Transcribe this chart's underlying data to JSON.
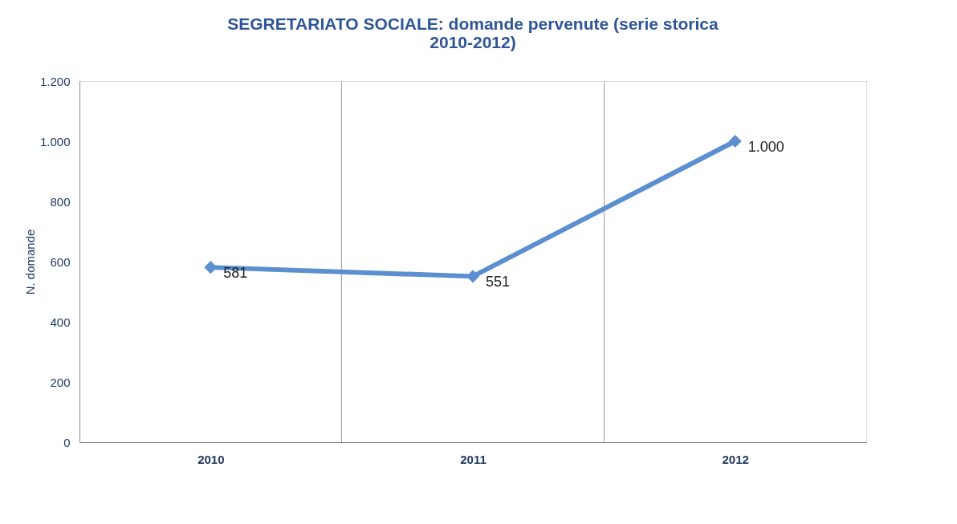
{
  "chart_data": {
    "type": "line",
    "title": [
      "SEGRETARIATO SOCIALE: domande pervenute (serie storica",
      "2010-2012)"
    ],
    "ylabel": "N. domande",
    "categories": [
      "2010",
      "2011",
      "2012"
    ],
    "series": [
      {
        "color": "#5b8fd0",
        "values": [
          581,
          551,
          1000
        ]
      }
    ],
    "value_labels": [
      "581",
      "551",
      "1.000"
    ],
    "ylim": [
      0,
      1200
    ],
    "yticks": [
      0,
      200,
      400,
      600,
      800,
      {
        "value": 1000,
        "label": "1.000"
      },
      {
        "value": 1200,
        "label": "1.200"
      }
    ],
    "grid": "x",
    "marker": "diamond",
    "line_style": "solid",
    "legend": false
  }
}
